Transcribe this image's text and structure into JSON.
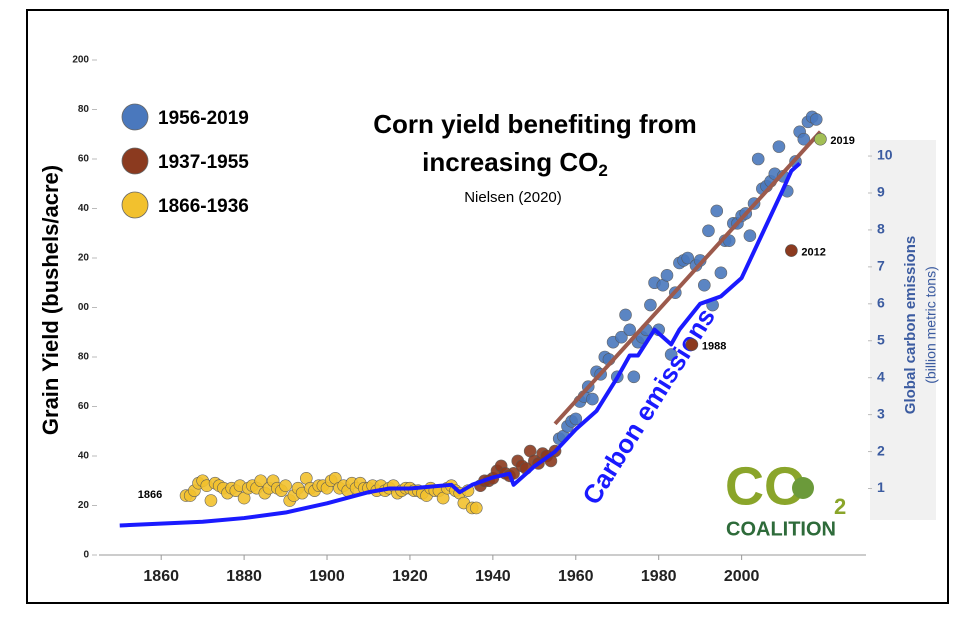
{
  "chart_data": {
    "type": "scatter",
    "title_line1": "Corn yield benefiting from",
    "title_line2": "increasing CO",
    "title_subscript": "2",
    "subtitle": "Nielsen (2020)",
    "y_label": "Grain Yield (bushels/acre)",
    "y2_label": "Global carbon emissions",
    "y2_label_sub": "(billion metric tons)",
    "annotations": [
      "1866"
    ],
    "logo": {
      "main": "CO",
      "subscript": "2",
      "name": "COALITION"
    },
    "xlim": [
      1845,
      2030
    ],
    "xticks": [
      1860,
      1880,
      1900,
      1920,
      1940,
      1960,
      1980,
      2000
    ],
    "ylim": [
      0,
      200
    ],
    "yticks": [
      0,
      20,
      40,
      60,
      80,
      {
        "value": 100,
        "label": "00"
      },
      {
        "value": 120,
        "label": "20"
      },
      {
        "value": 140,
        "label": "40"
      },
      {
        "value": 160,
        "label": "60"
      },
      {
        "value": 180,
        "label": "80"
      },
      200
    ],
    "y2lim": [
      -0.8,
      12.6
    ],
    "y2ticks": [
      1,
      2,
      3,
      4,
      5,
      6,
      7,
      8,
      9,
      10
    ],
    "series": [
      {
        "name": "1956-2019",
        "color": "#4a78bd",
        "x": [
          1956,
          1957,
          1958,
          1959,
          1960,
          1961,
          1962,
          1963,
          1964,
          1965,
          1966,
          1967,
          1968,
          1969,
          1970,
          1971,
          1972,
          1973,
          1974,
          1975,
          1976,
          1977,
          1978,
          1979,
          1980,
          1981,
          1982,
          1983,
          1984,
          1985,
          1986,
          1987,
          1988,
          1989,
          1990,
          1991,
          1992,
          1993,
          1994,
          1995,
          1996,
          1997,
          1998,
          1999,
          2000,
          2001,
          2002,
          2003,
          2004,
          2005,
          2006,
          2007,
          2008,
          2009,
          2010,
          2011,
          2012,
          2013,
          2014,
          2015,
          2016,
          2017,
          2018
        ],
        "values": [
          47,
          48,
          52,
          54,
          55,
          62,
          64,
          68,
          63,
          74,
          73,
          80,
          79,
          86,
          72,
          88,
          97,
          91,
          72,
          86,
          88,
          91,
          101,
          110,
          91,
          109,
          113,
          81,
          106,
          118,
          119,
          120,
          null,
          117,
          119,
          109,
          131,
          101,
          139,
          114,
          127,
          127,
          134,
          134,
          137,
          138,
          129,
          142,
          160,
          148,
          149,
          151,
          154,
          165,
          153,
          147,
          null,
          159,
          171,
          168,
          175,
          177,
          176
        ]
      },
      {
        "name": "1937-1955",
        "color": "#8b3a1f",
        "x": [
          1937,
          1938,
          1939,
          1940,
          1941,
          1942,
          1943,
          1944,
          1945,
          1946,
          1947,
          1948,
          1949,
          1950,
          1951,
          1952,
          1953,
          1954,
          1955
        ],
        "values": [
          28,
          30,
          30,
          31,
          34,
          36,
          33,
          32,
          33,
          38,
          36,
          35,
          42,
          38,
          37,
          41,
          40,
          38,
          42
        ]
      },
      {
        "name": "1866-1936",
        "color": "#f2c12e",
        "x": [
          1866,
          1867,
          1868,
          1869,
          1870,
          1871,
          1872,
          1873,
          1874,
          1875,
          1876,
          1877,
          1878,
          1879,
          1880,
          1881,
          1882,
          1883,
          1884,
          1885,
          1886,
          1887,
          1888,
          1889,
          1890,
          1891,
          1892,
          1893,
          1894,
          1895,
          1896,
          1897,
          1898,
          1899,
          1900,
          1901,
          1902,
          1903,
          1904,
          1905,
          1906,
          1907,
          1908,
          1909,
          1910,
          1911,
          1912,
          1913,
          1914,
          1915,
          1916,
          1917,
          1918,
          1919,
          1920,
          1921,
          1922,
          1923,
          1924,
          1925,
          1926,
          1927,
          1928,
          1929,
          1930,
          1931,
          1932,
          1933,
          1934,
          1935,
          1936
        ],
        "values": [
          24,
          24,
          26,
          29,
          30,
          28,
          22,
          29,
          28,
          27,
          25,
          27,
          26,
          28,
          23,
          27,
          28,
          27,
          30,
          25,
          27,
          30,
          27,
          26,
          28,
          22,
          24,
          27,
          25,
          31,
          27,
          26,
          28,
          28,
          27,
          30,
          31,
          27,
          28,
          26,
          29,
          27,
          29,
          27,
          27,
          28,
          26,
          28,
          26,
          27,
          28,
          25,
          26,
          27,
          27,
          26,
          26,
          25,
          24,
          27,
          26,
          26,
          23,
          27,
          28,
          26,
          25,
          21,
          26,
          19,
          19
        ]
      },
      {
        "name": "Carbon emissions",
        "type": "line",
        "axis": "y2",
        "color": "#1a1aff",
        "x": [
          1850,
          1870,
          1880,
          1890,
          1900,
          1910,
          1915,
          1920,
          1925,
          1930,
          1932,
          1935,
          1940,
          1944,
          1945,
          1950,
          1955,
          1960,
          1965,
          1970,
          1973,
          1975,
          1979,
          1980,
          1983,
          1985,
          1990,
          1995,
          2000,
          2005,
          2010,
          2012,
          2014
        ],
        "values": [
          0.0,
          0.1,
          0.2,
          0.35,
          0.6,
          0.9,
          1.0,
          1.0,
          1.05,
          1.1,
          0.9,
          1.1,
          1.3,
          1.4,
          1.1,
          1.6,
          2.0,
          2.6,
          3.1,
          4.0,
          4.6,
          4.6,
          5.3,
          5.2,
          4.9,
          5.3,
          6.0,
          6.2,
          6.7,
          7.9,
          9.1,
          9.6,
          9.8
        ]
      }
    ],
    "highlights": [
      {
        "x": 1988,
        "y": 85,
        "label": "1988",
        "color": "#8b3a1f"
      },
      {
        "x": 2012,
        "y": 123,
        "label": "2012",
        "color": "#8b3a1f"
      },
      {
        "x": 2019,
        "y": 168,
        "label": "2019",
        "color": "#a3bf55"
      }
    ],
    "trend_line": {
      "x": [
        1955,
        2019
      ],
      "values": [
        53,
        171
      ],
      "color": "#9c5a4c"
    }
  }
}
